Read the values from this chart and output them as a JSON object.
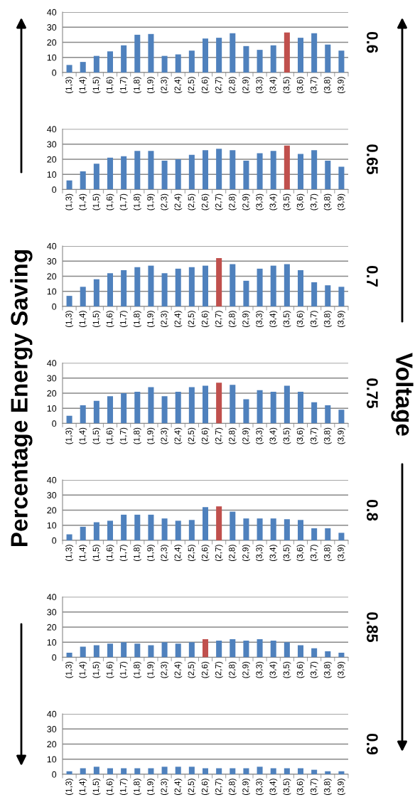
{
  "chart_data": [
    {
      "type": "bar",
      "y2label": "0.6",
      "annotations": [
        "Percentage Energy Saving",
        "Voltage"
      ],
      "categories": [
        "(1,3)",
        "(1,4)",
        "(1,5)",
        "(1,6)",
        "(1,7)",
        "(1,8)",
        "(1,9)",
        "(2,3)",
        "(2,4)",
        "(2,5)",
        "(2,6)",
        "(2,7)",
        "(2,8)",
        "(2,9)",
        "(3,3)",
        "(3,4)",
        "(3,5)",
        "(3,6)",
        "(3,7)",
        "(3,8)",
        "(3,9)"
      ],
      "values": [
        5,
        7,
        11,
        14,
        18,
        25,
        25.5,
        11,
        12,
        14.5,
        22.5,
        23,
        26,
        17.5,
        15,
        18,
        26.5,
        23,
        26,
        18.5,
        14.5
      ],
      "colors": [
        "#4f81bd",
        "#4f81bd",
        "#4f81bd",
        "#4f81bd",
        "#4f81bd",
        "#4f81bd",
        "#4f81bd",
        "#4f81bd",
        "#4f81bd",
        "#4f81bd",
        "#4f81bd",
        "#4f81bd",
        "#4f81bd",
        "#4f81bd",
        "#4f81bd",
        "#4f81bd",
        "#c0504d",
        "#4f81bd",
        "#4f81bd",
        "#4f81bd",
        "#4f81bd"
      ],
      "ylim": [
        0,
        40
      ],
      "yticks": [
        0,
        10,
        20,
        30,
        40
      ],
      "grid": "y"
    },
    {
      "type": "bar",
      "y2label": "0.65",
      "categories": [
        "(1,3)",
        "(1,4)",
        "(1,5)",
        "(1,6)",
        "(1,7)",
        "(1,8)",
        "(1,9)",
        "(2,3)",
        "(2,4)",
        "(2,5)",
        "(2,6)",
        "(2,7)",
        "(2,8)",
        "(2,9)",
        "(3,3)",
        "(3,4)",
        "(3,5)",
        "(3,6)",
        "(3,7)",
        "(3,8)",
        "(3,9)"
      ],
      "values": [
        6,
        12,
        17,
        21,
        22,
        25.5,
        25.5,
        19,
        20,
        23,
        26,
        27,
        26,
        19,
        24,
        25.5,
        29,
        23.5,
        26,
        19,
        15
      ],
      "colors": [
        "#4f81bd",
        "#4f81bd",
        "#4f81bd",
        "#4f81bd",
        "#4f81bd",
        "#4f81bd",
        "#4f81bd",
        "#4f81bd",
        "#4f81bd",
        "#4f81bd",
        "#4f81bd",
        "#4f81bd",
        "#4f81bd",
        "#4f81bd",
        "#4f81bd",
        "#4f81bd",
        "#c0504d",
        "#4f81bd",
        "#4f81bd",
        "#4f81bd",
        "#4f81bd"
      ],
      "ylim": [
        0,
        40
      ],
      "yticks": [
        0,
        10,
        20,
        30,
        40
      ],
      "grid": "y"
    },
    {
      "type": "bar",
      "y2label": "0.7",
      "categories": [
        "(1,3)",
        "(1,4)",
        "(1,5)",
        "(1,6)",
        "(1,7)",
        "(1,8)",
        "(1,9)",
        "(2,3)",
        "(2,4)",
        "(2,5)",
        "(2,6)",
        "(2,7)",
        "(2,8)",
        "(2,9)",
        "(3,3)",
        "(3,4)",
        "(3,5)",
        "(3,6)",
        "(3,7)",
        "(3,8)",
        "(3,9)"
      ],
      "values": [
        7,
        13,
        18,
        22,
        24,
        26,
        27,
        22,
        25,
        26,
        27,
        32,
        28,
        17,
        25,
        27,
        28,
        24,
        16,
        14,
        13
      ],
      "colors": [
        "#4f81bd",
        "#4f81bd",
        "#4f81bd",
        "#4f81bd",
        "#4f81bd",
        "#4f81bd",
        "#4f81bd",
        "#4f81bd",
        "#4f81bd",
        "#4f81bd",
        "#4f81bd",
        "#c0504d",
        "#4f81bd",
        "#4f81bd",
        "#4f81bd",
        "#4f81bd",
        "#4f81bd",
        "#4f81bd",
        "#4f81bd",
        "#4f81bd",
        "#4f81bd"
      ],
      "ylim": [
        0,
        40
      ],
      "yticks": [
        0,
        10,
        20,
        30,
        40
      ],
      "grid": "y"
    },
    {
      "type": "bar",
      "y2label": "0.75",
      "categories": [
        "(1,3)",
        "(1,4)",
        "(1,5)",
        "(1,6)",
        "(1,7)",
        "(1,8)",
        "(1,9)",
        "(2,3)",
        "(2,4)",
        "(2,5)",
        "(2,6)",
        "(2,7)",
        "(2,8)",
        "(2,9)",
        "(3,3)",
        "(3,4)",
        "(3,5)",
        "(3,6)",
        "(3,7)",
        "(3,8)",
        "(3,9)"
      ],
      "values": [
        5,
        12,
        15,
        18,
        20,
        21,
        24,
        18,
        21,
        24,
        25,
        27,
        25.5,
        16,
        22,
        21,
        25,
        21,
        14,
        12,
        9
      ],
      "colors": [
        "#4f81bd",
        "#4f81bd",
        "#4f81bd",
        "#4f81bd",
        "#4f81bd",
        "#4f81bd",
        "#4f81bd",
        "#4f81bd",
        "#4f81bd",
        "#4f81bd",
        "#4f81bd",
        "#c0504d",
        "#4f81bd",
        "#4f81bd",
        "#4f81bd",
        "#4f81bd",
        "#4f81bd",
        "#4f81bd",
        "#4f81bd",
        "#4f81bd",
        "#4f81bd"
      ],
      "ylim": [
        0,
        40
      ],
      "yticks": [
        0,
        10,
        20,
        30,
        40
      ],
      "grid": "y"
    },
    {
      "type": "bar",
      "y2label": "0.8",
      "categories": [
        "(1,3)",
        "(1,4)",
        "(1,5)",
        "(1,6)",
        "(1,7)",
        "(1,8)",
        "(1,9)",
        "(2,3)",
        "(2,4)",
        "(2,5)",
        "(2,6)",
        "(2,7)",
        "(2,8)",
        "(2,9)",
        "(3,3)",
        "(3,4)",
        "(3,5)",
        "(3,6)",
        "(3,7)",
        "(3,8)",
        "(3,9)"
      ],
      "values": [
        4,
        9,
        12,
        13,
        17,
        17,
        17,
        14.5,
        13,
        13.5,
        22,
        22.5,
        19,
        14.5,
        14.5,
        14.5,
        14,
        13.5,
        8,
        8,
        5
      ],
      "colors": [
        "#4f81bd",
        "#4f81bd",
        "#4f81bd",
        "#4f81bd",
        "#4f81bd",
        "#4f81bd",
        "#4f81bd",
        "#4f81bd",
        "#4f81bd",
        "#4f81bd",
        "#4f81bd",
        "#c0504d",
        "#4f81bd",
        "#4f81bd",
        "#4f81bd",
        "#4f81bd",
        "#4f81bd",
        "#4f81bd",
        "#4f81bd",
        "#4f81bd",
        "#4f81bd"
      ],
      "ylim": [
        0,
        40
      ],
      "yticks": [
        0,
        10,
        20,
        30,
        40
      ],
      "grid": "y"
    },
    {
      "type": "bar",
      "y2label": "0.85",
      "categories": [
        "(1,3)",
        "(1,4)",
        "(1,5)",
        "(1,6)",
        "(1,7)",
        "(1,8)",
        "(1,9)",
        "(2,3)",
        "(2,4)",
        "(2,5)",
        "(2,6)",
        "(2,7)",
        "(2,8)",
        "(2,9)",
        "(3,3)",
        "(3,4)",
        "(3,5)",
        "(3,6)",
        "(3,7)",
        "(3,8)",
        "(3,9)"
      ],
      "values": [
        3,
        7,
        8,
        9,
        10,
        9,
        8,
        10,
        9,
        10,
        12,
        11,
        12,
        11,
        12,
        11,
        10,
        8,
        6,
        4,
        3
      ],
      "colors": [
        "#4f81bd",
        "#4f81bd",
        "#4f81bd",
        "#4f81bd",
        "#4f81bd",
        "#4f81bd",
        "#4f81bd",
        "#4f81bd",
        "#4f81bd",
        "#4f81bd",
        "#c0504d",
        "#4f81bd",
        "#4f81bd",
        "#4f81bd",
        "#4f81bd",
        "#4f81bd",
        "#4f81bd",
        "#4f81bd",
        "#4f81bd",
        "#4f81bd",
        "#4f81bd"
      ],
      "ylim": [
        0,
        40
      ],
      "yticks": [
        0,
        10,
        20,
        30,
        40
      ],
      "grid": "y"
    },
    {
      "type": "bar",
      "y2label": "0.9",
      "categories": [
        "(1,3)",
        "(1,4)",
        "(1,5)",
        "(1,6)",
        "(1,7)",
        "(1,8)",
        "(1,9)",
        "(2,3)",
        "(2,4)",
        "(2,5)",
        "(2,6)",
        "(2,7)",
        "(2,8)",
        "(2,9)",
        "(3,3)",
        "(3,4)",
        "(3,5)",
        "(3,6)",
        "(3,7)",
        "(3,8)",
        "(3,9)"
      ],
      "values": [
        2,
        4,
        5,
        4,
        4,
        4,
        4,
        5,
        5,
        5,
        4,
        4,
        4,
        4,
        5,
        4,
        4,
        4,
        3,
        2,
        2
      ],
      "colors": [
        "#4f81bd",
        "#4f81bd",
        "#4f81bd",
        "#4f81bd",
        "#4f81bd",
        "#4f81bd",
        "#4f81bd",
        "#4f81bd",
        "#4f81bd",
        "#4f81bd",
        "#4f81bd",
        "#4f81bd",
        "#4f81bd",
        "#4f81bd",
        "#4f81bd",
        "#4f81bd",
        "#4f81bd",
        "#4f81bd",
        "#4f81bd",
        "#4f81bd",
        "#4f81bd"
      ],
      "ylim": [
        0,
        40
      ],
      "yticks": [
        0,
        10,
        20,
        30,
        40
      ],
      "grid": "y"
    }
  ]
}
